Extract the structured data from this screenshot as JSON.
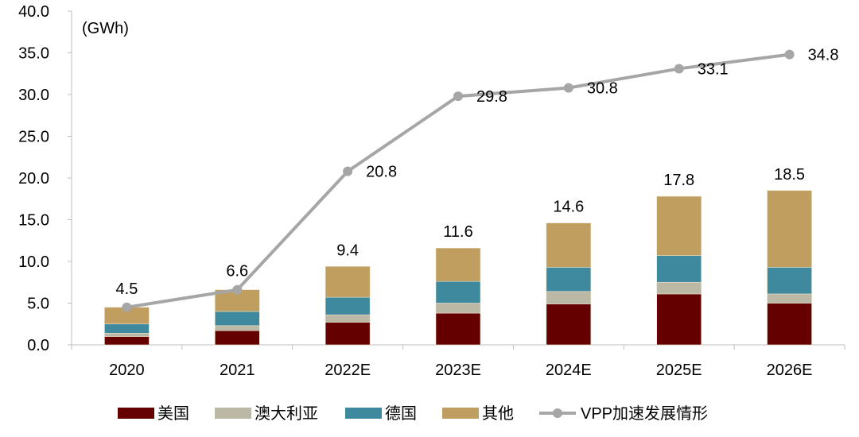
{
  "chart_data": {
    "type": "bar",
    "stacked": true,
    "unit_label": "(GWh)",
    "categories": [
      "2020",
      "2021",
      "2022E",
      "2023E",
      "2024E",
      "2025E",
      "2026E"
    ],
    "ylim": [
      0,
      40
    ],
    "yticks": [
      "0.0",
      "5.0",
      "10.0",
      "15.0",
      "20.0",
      "25.0",
      "30.0",
      "35.0",
      "40.0"
    ],
    "grid": false,
    "legend_position": "bottom",
    "series": [
      {
        "name": "美国",
        "color": "#640000",
        "values": [
          1.0,
          1.7,
          2.7,
          3.8,
          4.9,
          6.1,
          5.0
        ]
      },
      {
        "name": "澳大利亚",
        "color": "#bbb9a6",
        "values": [
          0.4,
          0.6,
          0.9,
          1.2,
          1.5,
          1.4,
          1.1
        ]
      },
      {
        "name": "德国",
        "color": "#3e899d",
        "values": [
          1.1,
          1.7,
          2.1,
          2.6,
          2.9,
          3.2,
          3.2
        ]
      },
      {
        "name": "其他",
        "color": "#bf9e5f",
        "values": [
          2.0,
          2.6,
          3.7,
          4.0,
          5.3,
          7.1,
          9.2
        ]
      }
    ],
    "bar_totals": [
      "4.5",
      "6.6",
      "9.4",
      "11.6",
      "14.6",
      "17.8",
      "18.5"
    ],
    "line": {
      "name": "VPP加速发展情形",
      "color": "#a6a6a6",
      "values": [
        4.5,
        6.6,
        20.8,
        29.8,
        30.8,
        33.1,
        34.8
      ],
      "labels": [
        "",
        "",
        "20.8",
        "29.8",
        "30.8",
        "33.1",
        "34.8"
      ]
    }
  }
}
